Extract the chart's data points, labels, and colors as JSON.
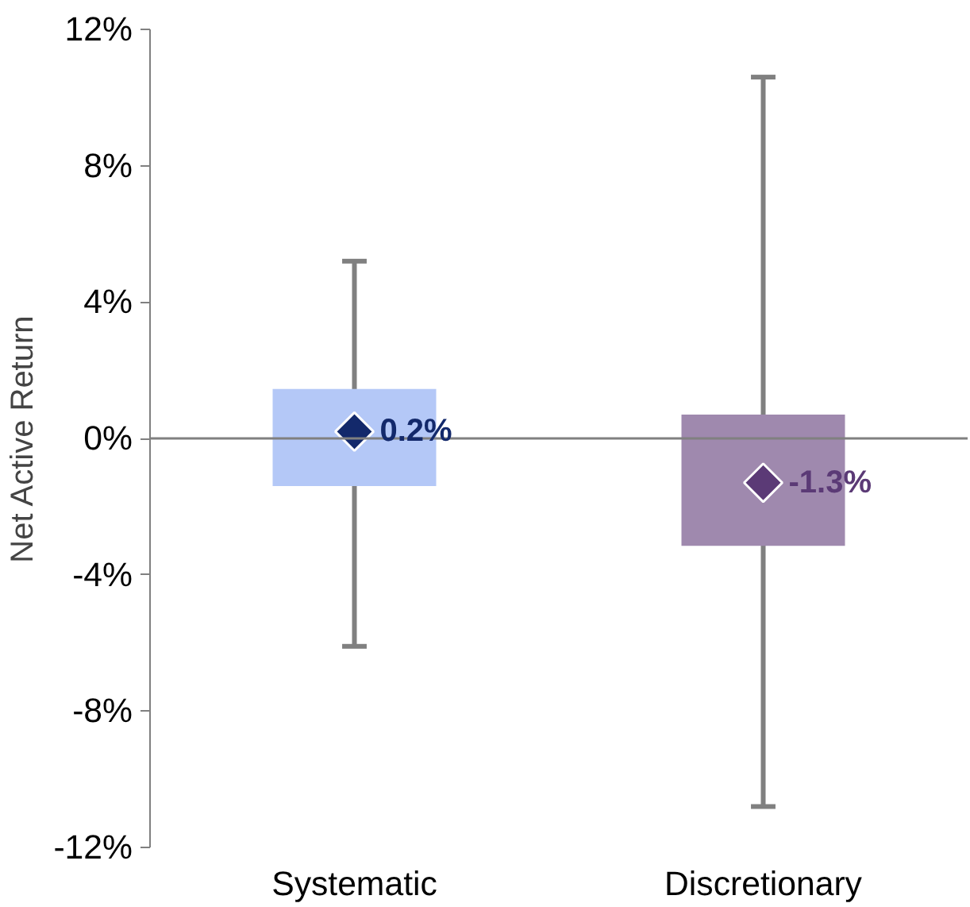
{
  "chart_data": {
    "type": "box",
    "ylabel": "Net Active Return",
    "categories": [
      "Systematic",
      "Discretionary"
    ],
    "boxes": [
      {
        "low": -6.1,
        "q1": -1.4,
        "q3": 1.45,
        "high": 5.2
      },
      {
        "low": -10.8,
        "q1": -3.15,
        "q3": 0.7,
        "high": 10.6
      }
    ],
    "colors": [
      "#b4c8f7",
      "#9f89ae"
    ],
    "series": [
      {
        "type": "scatter",
        "x": [
          "Systematic",
          "Discretionary"
        ],
        "values": [
          0.2,
          -1.3
        ],
        "colors": [
          "#13296b",
          "#5b3a76"
        ],
        "value_labels": [
          "0.2%",
          "-1.3%"
        ]
      }
    ],
    "marker": "diamond",
    "ylim": [
      -12,
      12
    ],
    "yticks": [
      {
        "value": -12,
        "label": "-12%"
      },
      {
        "value": -8,
        "label": "-8%"
      },
      {
        "value": -4,
        "label": "-4%"
      },
      {
        "value": 0,
        "label": "0%"
      },
      {
        "value": 4,
        "label": "4%"
      },
      {
        "value": 8,
        "label": "8%"
      },
      {
        "value": 12,
        "label": "12%"
      }
    ],
    "ref_lines": [
      {
        "axis": "y",
        "value": 0,
        "color": "#808080"
      }
    ],
    "grid": false
  }
}
